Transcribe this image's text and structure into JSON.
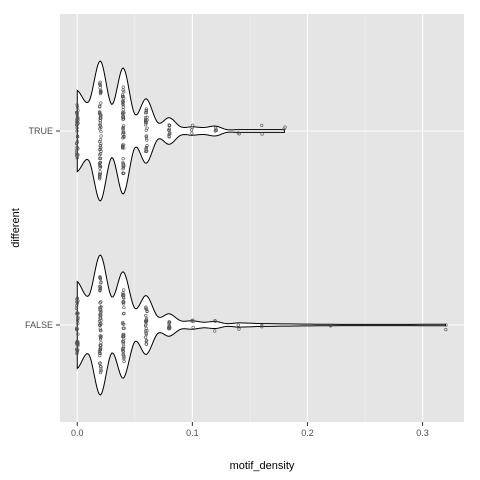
{
  "chart_data": {
    "type": "violin",
    "xlabel": "motif_density",
    "ylabel": "different",
    "xlim": [
      -0.015,
      0.336
    ],
    "x_ticks": [
      0.0,
      0.1,
      0.2,
      0.3
    ],
    "x_tick_labels": [
      "0.0",
      "0.1",
      "0.2",
      "0.3"
    ],
    "categories": [
      "TRUE",
      "FALSE"
    ],
    "grid": true,
    "legend": "none",
    "colors": {
      "panel": "#e5e5e5",
      "grid_major": "#ffffff",
      "grid_minor": "#f2f2f2",
      "violin_fill": "#ffffff",
      "violin_line": "#000000",
      "points": "#555555"
    },
    "series": [
      {
        "name": "TRUE",
        "density": [
          [
            0.0,
            0.58
          ],
          [
            0.01,
            0.42
          ],
          [
            0.02,
            1.0
          ],
          [
            0.03,
            0.38
          ],
          [
            0.04,
            0.9
          ],
          [
            0.05,
            0.24
          ],
          [
            0.06,
            0.46
          ],
          [
            0.07,
            0.12
          ],
          [
            0.08,
            0.19
          ],
          [
            0.09,
            0.06
          ],
          [
            0.1,
            0.06
          ],
          [
            0.11,
            0.05
          ],
          [
            0.12,
            0.07
          ],
          [
            0.13,
            0.02
          ],
          [
            0.14,
            0.02
          ],
          [
            0.16,
            0.02
          ],
          [
            0.18,
            0.02
          ]
        ],
        "point_values": [
          0.0,
          0.02,
          0.04,
          0.06,
          0.08,
          0.1,
          0.12,
          0.14,
          0.16,
          0.18
        ]
      },
      {
        "name": "FALSE",
        "density": [
          [
            0.0,
            0.62
          ],
          [
            0.01,
            0.42
          ],
          [
            0.02,
            1.0
          ],
          [
            0.03,
            0.4
          ],
          [
            0.04,
            0.76
          ],
          [
            0.05,
            0.24
          ],
          [
            0.06,
            0.42
          ],
          [
            0.07,
            0.12
          ],
          [
            0.08,
            0.16
          ],
          [
            0.09,
            0.06
          ],
          [
            0.1,
            0.06
          ],
          [
            0.11,
            0.04
          ],
          [
            0.12,
            0.05
          ],
          [
            0.13,
            0.02
          ],
          [
            0.14,
            0.03
          ],
          [
            0.16,
            0.02
          ],
          [
            0.22,
            0.01
          ],
          [
            0.32,
            0.01
          ]
        ],
        "point_values": [
          0.0,
          0.02,
          0.04,
          0.06,
          0.08,
          0.1,
          0.12,
          0.14,
          0.16,
          0.22,
          0.32
        ]
      }
    ]
  }
}
